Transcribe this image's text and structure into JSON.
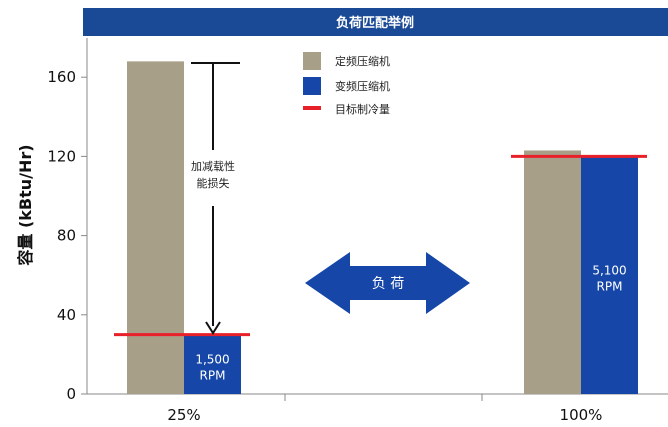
{
  "chart_data": {
    "type": "bar",
    "title": "负荷匹配举例",
    "ylabel": "容量 (kBtu/Hr)",
    "xlabel": "",
    "ylim": [
      0,
      170
    ],
    "yticks": [
      0,
      40,
      80,
      120,
      160
    ],
    "categories": [
      "25%",
      "100%"
    ],
    "series": [
      {
        "name": "定频压缩机",
        "values": [
          168,
          123
        ],
        "color": "#a89f88"
      },
      {
        "name": "变频压缩机",
        "values": [
          30,
          120
        ],
        "color": "#1546a8"
      }
    ],
    "target_line": {
      "name": "目标制冷量",
      "values": [
        30,
        120
      ],
      "color": "#e8202a"
    },
    "bar_labels": [
      "1,500 RPM",
      "5,100 RPM"
    ],
    "annotation": {
      "text_line1": "加减载性",
      "text_line2": "能损失"
    },
    "center_arrow": {
      "label": "负 荷"
    },
    "grid": false,
    "legend_position": "top-center"
  },
  "colors": {
    "header": "#1a4a96",
    "axis": "#888888"
  }
}
